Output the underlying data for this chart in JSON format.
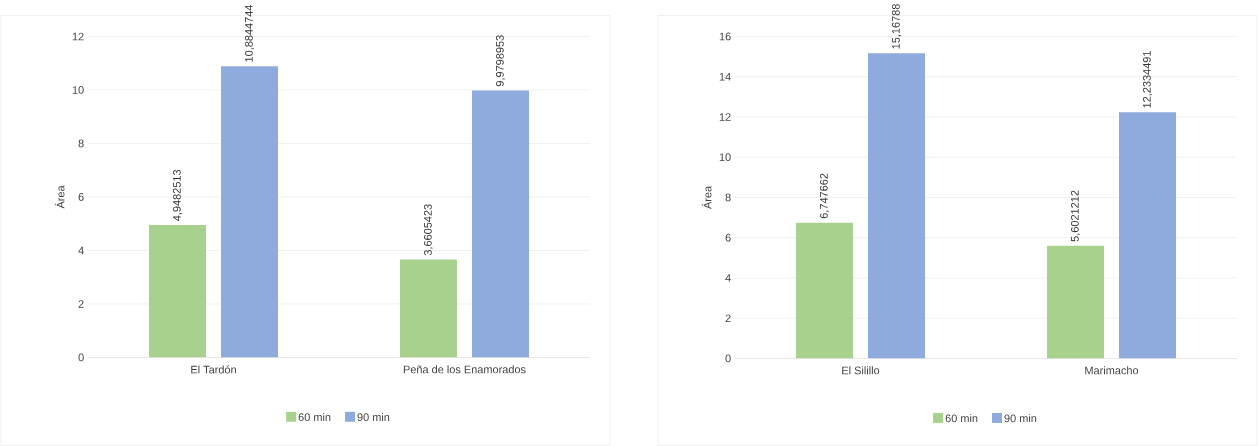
{
  "chart_data": [
    {
      "type": "bar",
      "ylabel": "Área",
      "categories": [
        "El Tardón",
        "Peña de los Enamorados"
      ],
      "ylim": [
        0,
        12
      ],
      "yticks": [
        0,
        2,
        4,
        6,
        8,
        10,
        12
      ],
      "grid": "y",
      "legend": "bottom",
      "series": [
        {
          "name": "60 min",
          "color": "#a9d18e",
          "values": [
            4.9482513,
            3.6605423
          ],
          "value_labels": [
            "4,9482513",
            "3,6605423"
          ]
        },
        {
          "name": "90 min",
          "color": "#8faadc",
          "values": [
            10.8844744,
            9.9798953
          ],
          "value_labels": [
            "10,8844744",
            "9,9798953"
          ]
        }
      ]
    },
    {
      "type": "bar",
      "ylabel": "Área",
      "categories": [
        "El Silillo",
        "Marimacho"
      ],
      "ylim": [
        0,
        16
      ],
      "yticks": [
        0,
        2,
        4,
        6,
        8,
        10,
        12,
        14,
        16
      ],
      "grid": "y",
      "legend": "bottom",
      "series": [
        {
          "name": "60 min",
          "color": "#a9d18e",
          "values": [
            6.747662,
            5.6021212
          ],
          "value_labels": [
            "6,747662",
            "5,6021212"
          ]
        },
        {
          "name": "90 min",
          "color": "#8faadc",
          "values": [
            15.16788,
            12.2334491
          ],
          "value_labels": [
            "15,16788",
            "12,2334491"
          ]
        }
      ]
    }
  ]
}
